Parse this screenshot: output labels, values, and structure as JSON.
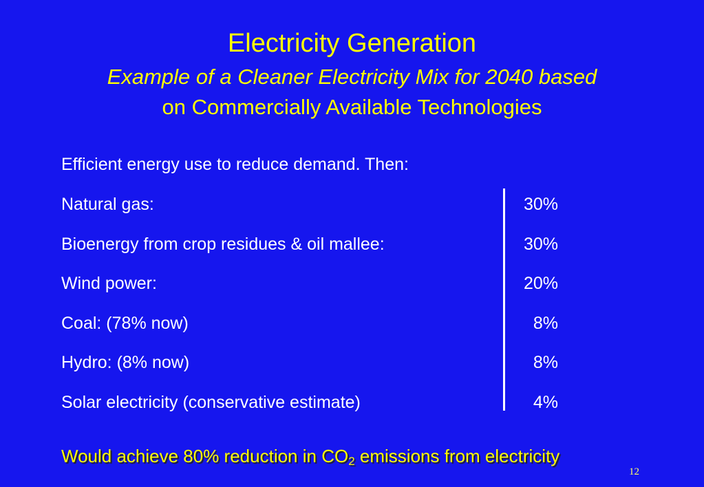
{
  "slide": {
    "title": "Electricity Generation",
    "subtitle_line1": "Example of a Cleaner Electricity Mix for 2040 based",
    "subtitle_line2": "on Commercially Available Technologies",
    "intro": "Efficient energy use to reduce demand. Then:",
    "mix": [
      {
        "label": "Natural gas:",
        "value": "30%"
      },
      {
        "label": "Bioenergy from crop residues & oil mallee:",
        "value": "30%"
      },
      {
        "label": "Wind power:",
        "value": "20%"
      },
      {
        "label": "Coal: (78% now)",
        "value": "8%"
      },
      {
        "label": "Hydro: (8% now)",
        "value": "8%"
      },
      {
        "label": "Solar electricity (conservative estimate)",
        "value": "4%"
      }
    ],
    "conclusion_before": "Would achieve 80% reduction in CO",
    "conclusion_subscript": "2",
    "conclusion_after": " emissions from electricity",
    "page_number": "12"
  },
  "colors": {
    "background": "#1616ee",
    "heading": "#ffff00",
    "body_text": "#ffffff"
  }
}
